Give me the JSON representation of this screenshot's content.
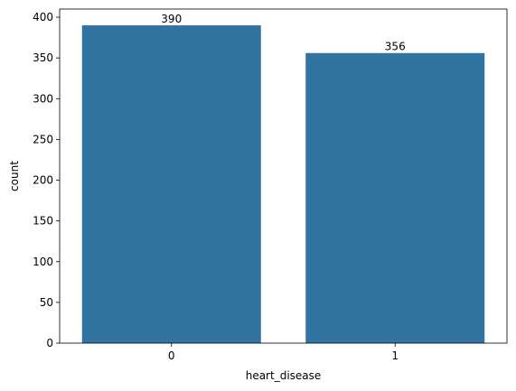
{
  "chart_data": {
    "type": "bar",
    "categories": [
      "0",
      "1"
    ],
    "values": [
      390,
      356
    ],
    "data_labels": [
      "390",
      "356"
    ],
    "title": "",
    "xlabel": "heart_disease",
    "ylabel": "count",
    "ylim": [
      0,
      410
    ],
    "yticks": [
      0,
      50,
      100,
      150,
      200,
      250,
      300,
      350,
      400
    ],
    "grid": false,
    "bar_color": "#3274a1"
  }
}
